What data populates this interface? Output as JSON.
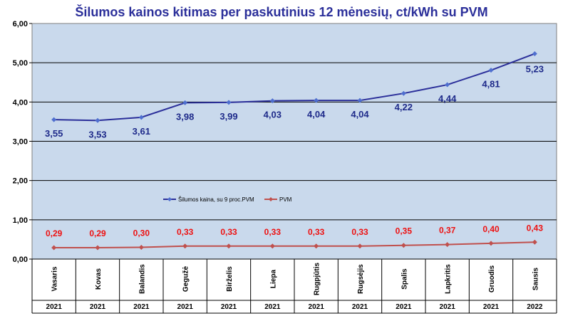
{
  "chart_data": {
    "type": "line",
    "title": "Šilumos kainos kitimas per paskutinius 12 mėnesių, ct/kWh su PVM",
    "xlabel": "",
    "ylabel": "",
    "ylim": [
      0,
      6
    ],
    "yticks": [
      "0,00",
      "1,00",
      "2,00",
      "3,00",
      "4,00",
      "5,00",
      "6,00"
    ],
    "categories": [
      "Vasaris",
      "Kovas",
      "Balandis",
      "Gegužė",
      "Birželis",
      "Liepa",
      "Rugpjūtis",
      "Rugsėjis",
      "Spalis",
      "Lapkritis",
      "Gruodis",
      "Sausis"
    ],
    "years": [
      "2021",
      "2021",
      "2021",
      "2021",
      "2021",
      "2021",
      "2021",
      "2021",
      "2021",
      "2021",
      "2021",
      "2022"
    ],
    "grid": true,
    "legend_position": "middle-left",
    "series": [
      {
        "name": "Šilumos kaina, su 9 proc.PVM",
        "color": "#2b2f9a",
        "values": [
          3.55,
          3.53,
          3.61,
          3.98,
          3.99,
          4.03,
          4.04,
          4.04,
          4.22,
          4.44,
          4.81,
          5.23
        ],
        "labels": [
          "3,55",
          "3,53",
          "3,61",
          "3,98",
          "3,99",
          "4,03",
          "4,04",
          "4,04",
          "4,22",
          "4,44",
          "4,81",
          "5,23"
        ]
      },
      {
        "name": "PVM",
        "color": "#c0504d",
        "values": [
          0.29,
          0.29,
          0.3,
          0.33,
          0.33,
          0.33,
          0.33,
          0.33,
          0.35,
          0.37,
          0.4,
          0.43
        ],
        "labels": [
          "0,29",
          "0,29",
          "0,30",
          "0,33",
          "0,33",
          "0,33",
          "0,33",
          "0,33",
          "0,35",
          "0,37",
          "0,40",
          "0,43"
        ]
      }
    ],
    "colors": {
      "plot_background": "#c9d9ec",
      "label_main": "#1e2a8a",
      "label_pvm": "#ee1111",
      "title": "#2b2f9a"
    }
  }
}
